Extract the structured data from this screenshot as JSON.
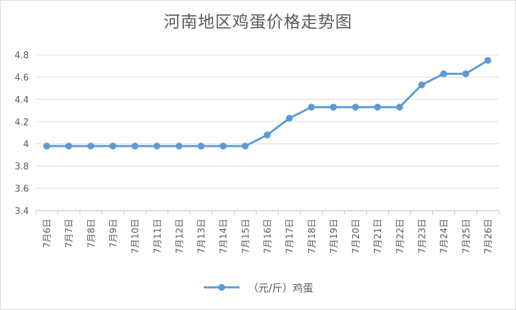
{
  "chart_data": {
    "type": "line",
    "title": "河南地区鸡蛋价格走势图",
    "categories": [
      "7月6日",
      "7月7日",
      "7月8日",
      "7月9日",
      "7月10日",
      "7月11日",
      "7月12日",
      "7月13日",
      "7月14日",
      "7月15日",
      "7月16日",
      "7月17日",
      "7月18日",
      "7月19日",
      "7月20日",
      "7月21日",
      "7月22日",
      "7月23日",
      "7月24日",
      "7月25日",
      "7月26日"
    ],
    "series": [
      {
        "name": "（元/斤）鸡蛋",
        "color": "#5b9bd5",
        "values": [
          3.98,
          3.98,
          3.98,
          3.98,
          3.98,
          3.98,
          3.98,
          3.98,
          3.98,
          3.98,
          4.08,
          4.23,
          4.33,
          4.33,
          4.33,
          4.33,
          4.33,
          4.53,
          4.63,
          4.63,
          4.75
        ]
      }
    ],
    "ylim": [
      3.4,
      4.8
    ],
    "yticks": [
      "3.4",
      "3.6",
      "3.8",
      "4",
      "4.2",
      "4.4",
      "4.6",
      "4.8"
    ],
    "xlabel": "",
    "ylabel": "",
    "grid": true,
    "legend_position": "bottom"
  }
}
